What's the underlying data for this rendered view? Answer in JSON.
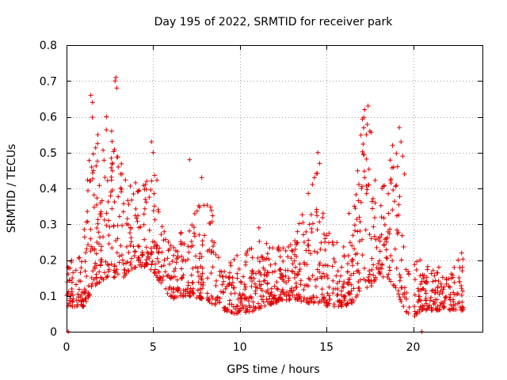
{
  "chart_data": {
    "type": "scatter",
    "title": "Day 195 of 2022, SRMTID for receiver park",
    "xlabel": "GPS time / hours",
    "ylabel": "SRMTID / TECUs",
    "xlim": [
      0,
      24
    ],
    "ylim": [
      0,
      0.8
    ],
    "xticks": [
      0,
      5,
      10,
      15,
      20
    ],
    "yticks": [
      0,
      0.1,
      0.2,
      0.3,
      0.4,
      0.5,
      0.6,
      0.7,
      0.8
    ],
    "xtick_labels": [
      "0",
      "5",
      "10",
      "15",
      "20"
    ],
    "ytick_labels": [
      "0",
      "0.1",
      "0.2",
      "0.3",
      "0.4",
      "0.5",
      "0.6",
      "0.7",
      "0.8"
    ],
    "grid": true,
    "marker": "plus",
    "series_color": "#e00000",
    "envelope": {
      "description": "approximate per-time-window value range of the point cloud (data units)",
      "x": [
        0.0,
        0.5,
        1.0,
        1.5,
        2.0,
        2.5,
        3.0,
        3.5,
        4.0,
        4.5,
        5.0,
        5.5,
        6.0,
        7.0,
        8.0,
        9.0,
        9.5,
        10.0,
        11.0,
        12.0,
        13.0,
        14.0,
        14.5,
        15.0,
        16.0,
        16.5,
        17.0,
        17.5,
        18.0,
        19.0,
        19.5,
        20.0,
        20.5,
        21.0,
        22.0,
        23.0
      ],
      "low": [
        0.07,
        0.07,
        0.07,
        0.12,
        0.14,
        0.16,
        0.14,
        0.16,
        0.18,
        0.18,
        0.17,
        0.13,
        0.09,
        0.1,
        0.09,
        0.06,
        0.05,
        0.05,
        0.06,
        0.08,
        0.09,
        0.08,
        0.08,
        0.07,
        0.07,
        0.08,
        0.12,
        0.12,
        0.16,
        0.12,
        0.06,
        0.04,
        0.06,
        0.06,
        0.06,
        0.06
      ],
      "high": [
        0.21,
        0.2,
        0.28,
        0.62,
        0.5,
        0.62,
        0.55,
        0.4,
        0.42,
        0.42,
        0.52,
        0.3,
        0.24,
        0.3,
        0.42,
        0.2,
        0.2,
        0.22,
        0.26,
        0.24,
        0.25,
        0.4,
        0.48,
        0.28,
        0.26,
        0.3,
        0.6,
        0.6,
        0.4,
        0.55,
        0.22,
        0.2,
        0.19,
        0.18,
        0.18,
        0.22
      ]
    },
    "peaks": [
      {
        "x": 1.4,
        "y": 0.66
      },
      {
        "x": 1.5,
        "y": 0.64
      },
      {
        "x": 1.8,
        "y": 0.55
      },
      {
        "x": 2.3,
        "y": 0.6
      },
      {
        "x": 2.6,
        "y": 0.56
      },
      {
        "x": 2.8,
        "y": 0.7
      },
      {
        "x": 2.85,
        "y": 0.71
      },
      {
        "x": 2.9,
        "y": 0.68
      },
      {
        "x": 3.2,
        "y": 0.44
      },
      {
        "x": 4.9,
        "y": 0.53
      },
      {
        "x": 5.0,
        "y": 0.5
      },
      {
        "x": 7.1,
        "y": 0.48
      },
      {
        "x": 7.8,
        "y": 0.43
      },
      {
        "x": 11.1,
        "y": 0.29
      },
      {
        "x": 14.3,
        "y": 0.43
      },
      {
        "x": 14.5,
        "y": 0.5
      },
      {
        "x": 14.6,
        "y": 0.47
      },
      {
        "x": 16.3,
        "y": 0.33
      },
      {
        "x": 17.2,
        "y": 0.62
      },
      {
        "x": 17.3,
        "y": 0.55
      },
      {
        "x": 17.4,
        "y": 0.63
      },
      {
        "x": 17.5,
        "y": 0.56
      },
      {
        "x": 17.2,
        "y": 0.43
      },
      {
        "x": 18.2,
        "y": 0.4
      },
      {
        "x": 18.8,
        "y": 0.34
      },
      {
        "x": 19.2,
        "y": 0.57
      },
      {
        "x": 19.3,
        "y": 0.53
      },
      {
        "x": 19.4,
        "y": 0.49
      },
      {
        "x": 19.5,
        "y": 0.44
      },
      {
        "x": 20.4,
        "y": 0.2
      },
      {
        "x": 22.8,
        "y": 0.22
      },
      {
        "x": 22.6,
        "y": 0.2
      }
    ],
    "isolated": [
      {
        "x": 0.1,
        "y": 0.0
      },
      {
        "x": 20.5,
        "y": 0.0
      }
    ],
    "sample_count": 1400
  }
}
